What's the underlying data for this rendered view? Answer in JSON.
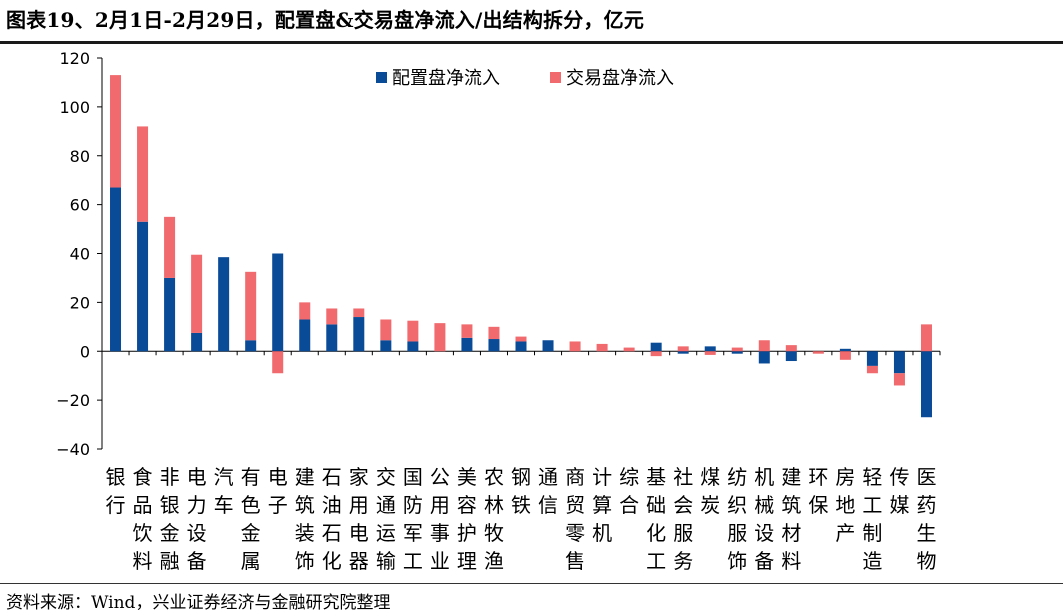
{
  "header": {
    "title": "图表19、2月1日-2月29日，配置盘&交易盘净流入/出结构拆分，亿元"
  },
  "footer": {
    "source": "资料来源：Wind，兴业证券经济与金融研究院整理"
  },
  "colors": {
    "series_allocation": "#0a4b97",
    "series_trading": "#f06a6e"
  },
  "chart_data": {
    "type": "bar",
    "stacked": true,
    "ylim": [
      -40,
      120
    ],
    "yticks": [
      -40,
      -20,
      0,
      20,
      40,
      60,
      80,
      100,
      120
    ],
    "legend_position": "top-center",
    "grid": false,
    "categories": [
      "银行",
      "食品饮料",
      "非银金融",
      "电力设备",
      "汽车",
      "有色金属",
      "电子",
      "建筑装饰",
      "石油石化",
      "家用电器",
      "交通运输",
      "国防军工",
      "公用事业",
      "美容护理",
      "农林牧渔",
      "钢铁",
      "通信",
      "商贸零售",
      "计算机",
      "综合",
      "基础化工",
      "社会服务",
      "煤炭",
      "纺织服饰",
      "机械设备",
      "建筑材料",
      "环保",
      "房地产",
      "轻工制造",
      "传媒",
      "医药生物"
    ],
    "series": [
      {
        "name": "配置盘净流入",
        "values": [
          67,
          53,
          30,
          7.5,
          38.5,
          4.5,
          40,
          13,
          11,
          14,
          4.5,
          4,
          0,
          5.5,
          5,
          4,
          4.5,
          0,
          0,
          0,
          3.5,
          -1,
          2,
          -1,
          -5,
          -4,
          0,
          1,
          -6,
          -9,
          -27
        ]
      },
      {
        "name": "交易盘净流入",
        "values": [
          46,
          39,
          25,
          32,
          0,
          28,
          -9,
          7,
          6.5,
          3.5,
          8.5,
          8.5,
          11.5,
          5.5,
          5,
          2,
          0,
          4,
          3,
          1.5,
          -2,
          2,
          -1.5,
          1.5,
          4.5,
          2.5,
          -1,
          -3.5,
          -3,
          -5,
          11
        ]
      }
    ]
  }
}
